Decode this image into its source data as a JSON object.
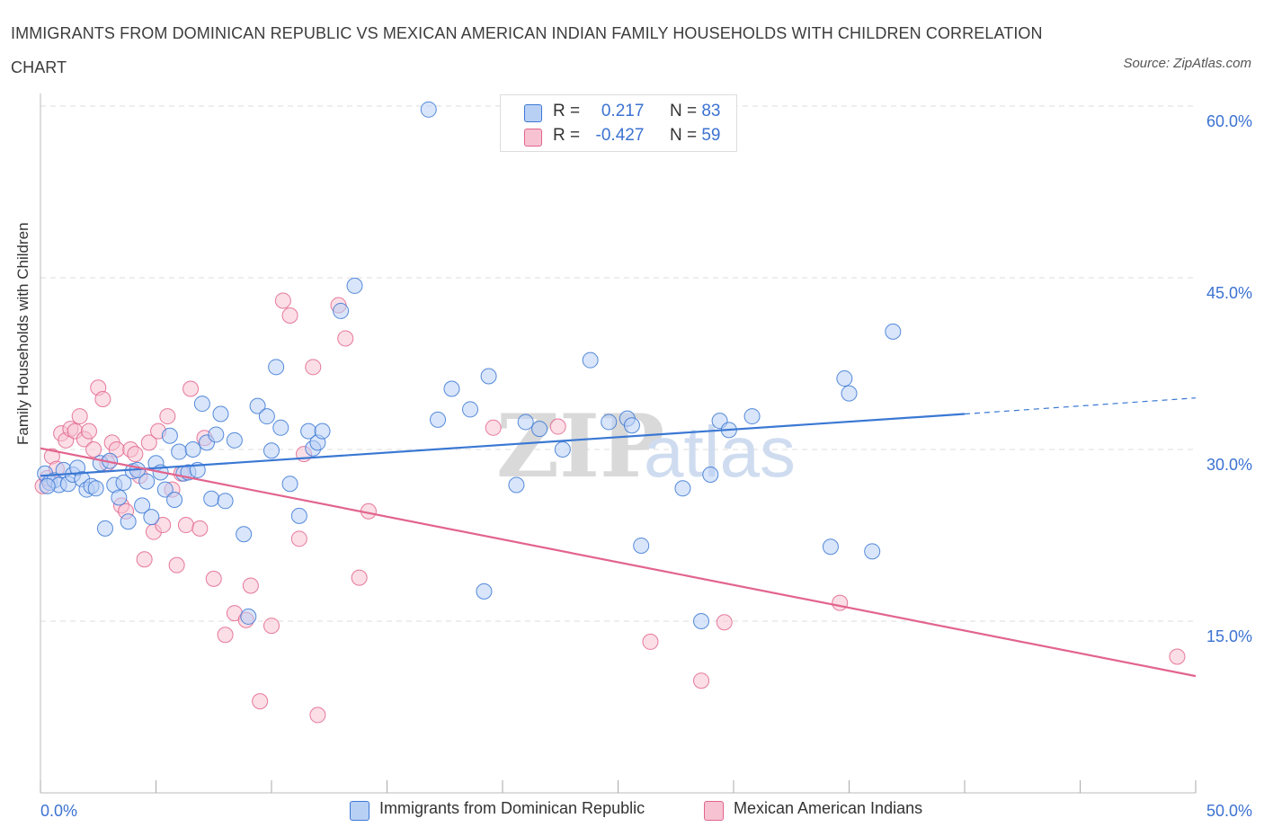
{
  "title": "IMMIGRANTS FROM DOMINICAN REPUBLIC VS MEXICAN AMERICAN INDIAN FAMILY HOUSEHOLDS WITH CHILDREN CORRELATION CHART",
  "source": "Source: ZipAtlas.com",
  "watermark": {
    "zip": "ZIP",
    "atlas": "atlas"
  },
  "colors": {
    "blue": "#3a78d4",
    "blue_fill": "#b9d0f5",
    "pink": "#e2648d",
    "pink_fill": "#f7c2d2",
    "tick_label": "#3b72d1",
    "grid": "#dedede"
  },
  "legend": {
    "r_label": "R =",
    "n_label": "N =",
    "series": [
      {
        "r": "0.217",
        "n": "83"
      },
      {
        "r": "-0.427",
        "n": "59"
      }
    ]
  },
  "chart_data": {
    "type": "scatter",
    "title": "IMMIGRANTS FROM DOMINICAN REPUBLIC VS MEXICAN AMERICAN INDIAN FAMILY HOUSEHOLDS WITH CHILDREN CORRELATION CHART",
    "xlabel": "",
    "ylabel": "Family Households with Children",
    "xlim": [
      0,
      50
    ],
    "ylim": [
      0,
      60
    ],
    "x_tick_labels": [
      "0.0%",
      "50.0%"
    ],
    "y_ticks": [
      15,
      30,
      45,
      60
    ],
    "y_tick_labels": [
      "15.0%",
      "30.0%",
      "45.0%",
      "60.0%"
    ],
    "grid": true,
    "legend_position": "top-center",
    "series": [
      {
        "name": "Immigrants from Dominican Republic",
        "r": 0.217,
        "n": 83,
        "trend": {
          "x": [
            0,
            40
          ],
          "y": [
            27.7,
            33.1
          ],
          "dashed_to": [
            50,
            34.5
          ]
        },
        "points": [
          [
            0.2,
            27.9
          ],
          [
            0.4,
            27.1
          ],
          [
            0.6,
            27.3
          ],
          [
            0.8,
            26.9
          ],
          [
            1.0,
            28.2
          ],
          [
            1.2,
            27.0
          ],
          [
            1.4,
            27.8
          ],
          [
            1.6,
            28.4
          ],
          [
            1.8,
            27.4
          ],
          [
            2.0,
            26.5
          ],
          [
            2.2,
            26.8
          ],
          [
            2.4,
            26.6
          ],
          [
            2.6,
            28.8
          ],
          [
            2.8,
            23.1
          ],
          [
            3.0,
            29.0
          ],
          [
            3.2,
            26.9
          ],
          [
            3.4,
            25.8
          ],
          [
            3.6,
            27.1
          ],
          [
            3.8,
            23.7
          ],
          [
            4.0,
            28.1
          ],
          [
            4.2,
            28.2
          ],
          [
            4.4,
            25.1
          ],
          [
            4.6,
            27.2
          ],
          [
            4.8,
            24.1
          ],
          [
            5.0,
            28.8
          ],
          [
            5.2,
            28.0
          ],
          [
            5.4,
            26.5
          ],
          [
            5.6,
            31.2
          ],
          [
            5.8,
            25.6
          ],
          [
            6.0,
            29.8
          ],
          [
            6.2,
            27.9
          ],
          [
            6.4,
            28.0
          ],
          [
            6.6,
            30.0
          ],
          [
            6.8,
            28.2
          ],
          [
            7.0,
            34.0
          ],
          [
            7.2,
            30.6
          ],
          [
            7.4,
            25.7
          ],
          [
            7.6,
            31.3
          ],
          [
            7.8,
            33.1
          ],
          [
            8.0,
            25.5
          ],
          [
            8.4,
            30.8
          ],
          [
            8.8,
            22.6
          ],
          [
            9.0,
            15.4
          ],
          [
            9.4,
            33.8
          ],
          [
            9.8,
            32.9
          ],
          [
            10.0,
            29.9
          ],
          [
            10.2,
            37.2
          ],
          [
            10.4,
            31.9
          ],
          [
            10.8,
            27.0
          ],
          [
            11.2,
            24.2
          ],
          [
            11.6,
            31.6
          ],
          [
            11.8,
            30.1
          ],
          [
            12.0,
            30.6
          ],
          [
            12.2,
            31.6
          ],
          [
            13.0,
            42.1
          ],
          [
            13.6,
            44.3
          ],
          [
            16.8,
            59.7
          ],
          [
            17.2,
            32.6
          ],
          [
            17.8,
            35.3
          ],
          [
            18.6,
            33.5
          ],
          [
            19.2,
            17.6
          ],
          [
            19.4,
            36.4
          ],
          [
            20.6,
            26.9
          ],
          [
            21.0,
            32.4
          ],
          [
            21.6,
            31.8
          ],
          [
            22.6,
            30.0
          ],
          [
            23.8,
            37.8
          ],
          [
            24.6,
            32.4
          ],
          [
            25.4,
            32.7
          ],
          [
            25.6,
            32.1
          ],
          [
            26.0,
            21.6
          ],
          [
            27.8,
            26.6
          ],
          [
            28.6,
            15.0
          ],
          [
            29.0,
            27.8
          ],
          [
            29.4,
            32.5
          ],
          [
            29.8,
            31.7
          ],
          [
            30.8,
            32.9
          ],
          [
            34.2,
            21.5
          ],
          [
            34.8,
            36.2
          ],
          [
            35.0,
            34.9
          ],
          [
            36.0,
            21.1
          ],
          [
            36.9,
            40.3
          ],
          [
            0.3,
            26.8
          ]
        ]
      },
      {
        "name": "Mexican American Indians",
        "r": -0.427,
        "n": 59,
        "trend": {
          "x": [
            0,
            50
          ],
          "y": [
            30.1,
            10.2
          ]
        },
        "points": [
          [
            0.1,
            26.8
          ],
          [
            0.3,
            27.5
          ],
          [
            0.5,
            29.4
          ],
          [
            0.7,
            28.3
          ],
          [
            0.9,
            31.4
          ],
          [
            1.1,
            30.8
          ],
          [
            1.3,
            31.8
          ],
          [
            1.5,
            31.6
          ],
          [
            1.7,
            32.9
          ],
          [
            1.9,
            30.9
          ],
          [
            2.1,
            31.6
          ],
          [
            2.3,
            30.0
          ],
          [
            2.5,
            35.4
          ],
          [
            2.7,
            34.4
          ],
          [
            2.9,
            28.8
          ],
          [
            3.1,
            30.6
          ],
          [
            3.3,
            30.0
          ],
          [
            3.5,
            25.1
          ],
          [
            3.7,
            24.6
          ],
          [
            3.9,
            30.0
          ],
          [
            4.1,
            29.6
          ],
          [
            4.3,
            27.7
          ],
          [
            4.5,
            20.4
          ],
          [
            4.7,
            30.6
          ],
          [
            4.9,
            22.8
          ],
          [
            5.1,
            31.6
          ],
          [
            5.3,
            23.4
          ],
          [
            5.5,
            32.9
          ],
          [
            5.7,
            26.5
          ],
          [
            5.9,
            19.9
          ],
          [
            6.1,
            27.9
          ],
          [
            6.3,
            23.4
          ],
          [
            6.5,
            35.3
          ],
          [
            6.9,
            23.1
          ],
          [
            7.1,
            31.0
          ],
          [
            7.5,
            18.7
          ],
          [
            8.0,
            13.8
          ],
          [
            8.4,
            15.7
          ],
          [
            8.9,
            15.1
          ],
          [
            9.1,
            18.1
          ],
          [
            9.5,
            8.0
          ],
          [
            10.0,
            14.6
          ],
          [
            10.5,
            43.0
          ],
          [
            10.8,
            41.7
          ],
          [
            11.2,
            22.2
          ],
          [
            11.4,
            29.6
          ],
          [
            11.8,
            37.2
          ],
          [
            12.0,
            6.8
          ],
          [
            12.9,
            42.6
          ],
          [
            13.2,
            39.7
          ],
          [
            13.8,
            18.8
          ],
          [
            14.2,
            24.6
          ],
          [
            19.6,
            31.9
          ],
          [
            22.4,
            32.0
          ],
          [
            26.4,
            13.2
          ],
          [
            28.6,
            9.8
          ],
          [
            29.6,
            14.9
          ],
          [
            34.6,
            16.6
          ],
          [
            49.2,
            11.9
          ]
        ]
      }
    ]
  }
}
